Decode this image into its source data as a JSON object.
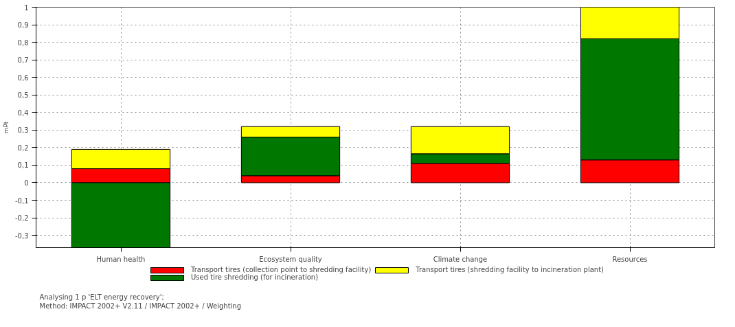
{
  "chart_data": {
    "type": "bar",
    "stacked": true,
    "ylabel": "mPt",
    "categories": [
      "Human health",
      "Ecosystem quality",
      "Climate change",
      "Resources"
    ],
    "series": [
      {
        "name": "Transport tires (collection point to shredding facility)",
        "color": "#ff0000",
        "values": [
          0.08,
          0.04,
          0.11,
          0.13
        ]
      },
      {
        "name": "Used tire shredding (for incineration)",
        "color": "#007800",
        "values": [
          -0.37,
          0.22,
          0.055,
          0.69
        ]
      },
      {
        "name": "Transport tires (shredding facility to incineration plant)",
        "color": "#ffff00",
        "values": [
          0.11,
          0.06,
          0.155,
          0.18
        ]
      }
    ],
    "ylim": [
      -0.37,
      1
    ],
    "yticks": [
      {
        "value": -0.3,
        "label": "-0,3"
      },
      {
        "value": -0.2,
        "label": "-0,2"
      },
      {
        "value": -0.1,
        "label": "-0,1"
      },
      0,
      {
        "value": 0.1,
        "label": "0,1"
      },
      {
        "value": 0.2,
        "label": "0,2"
      },
      {
        "value": 0.3,
        "label": "0,3"
      },
      {
        "value": 0.4,
        "label": "0,4"
      },
      {
        "value": 0.5,
        "label": "0,5"
      },
      {
        "value": 0.6,
        "label": "0,6"
      },
      {
        "value": 0.7,
        "label": "0,7"
      },
      {
        "value": 0.8,
        "label": "0,8"
      },
      {
        "value": 0.9,
        "label": "0,9"
      },
      1
    ],
    "grid": true,
    "legend": "bottom",
    "annotations": [
      "Analysing 1 p 'ELT energy recovery';",
      "Method: IMPACT 2002+ V2.11 / IMPACT 2002+ / Weighting"
    ]
  }
}
